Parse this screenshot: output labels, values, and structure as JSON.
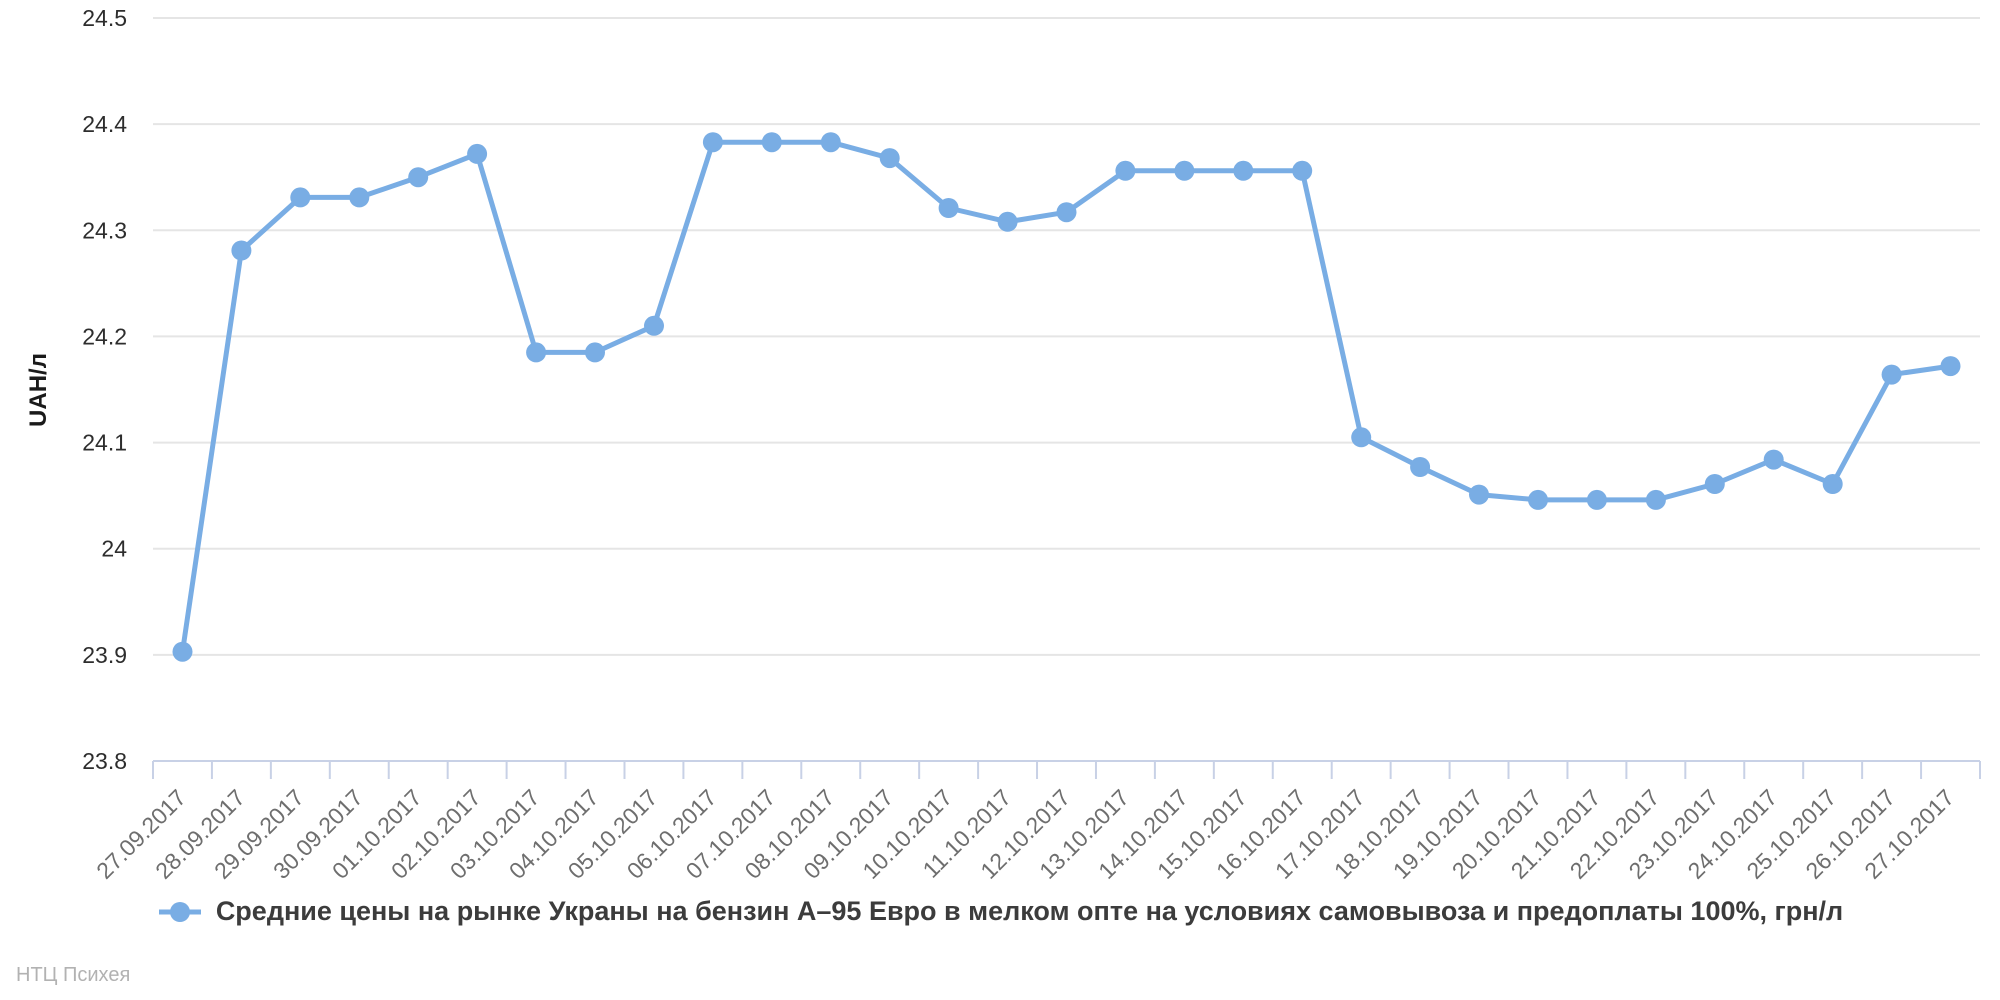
{
  "chart_data": {
    "type": "line",
    "title": "",
    "ylabel": "UAH/л",
    "xlabel": "",
    "ylim": [
      23.8,
      24.5
    ],
    "grid": "horizontal",
    "legend_position": "bottom",
    "x_tick_rotation": -45,
    "categories": [
      "27.09.2017",
      "28.09.2017",
      "29.09.2017",
      "30.09.2017",
      "01.10.2017",
      "02.10.2017",
      "03.10.2017",
      "04.10.2017",
      "05.10.2017",
      "06.10.2017",
      "07.10.2017",
      "08.10.2017",
      "09.10.2017",
      "10.10.2017",
      "11.10.2017",
      "12.10.2017",
      "13.10.2017",
      "14.10.2017",
      "15.10.2017",
      "16.10.2017",
      "17.10.2017",
      "18.10.2017",
      "19.10.2017",
      "20.10.2017",
      "21.10.2017",
      "22.10.2017",
      "23.10.2017",
      "24.10.2017",
      "25.10.2017",
      "26.10.2017",
      "27.10.2017"
    ],
    "series": [
      {
        "name": "Средние цены на рынке Украны на бензин А–95 Евро в мелком опте на условиях самовывоза и предоплаты 100%, грн/л",
        "values": [
          23.903,
          24.281,
          24.331,
          24.331,
          24.35,
          24.372,
          24.185,
          24.185,
          24.21,
          24.383,
          24.383,
          24.383,
          24.368,
          24.321,
          24.308,
          24.317,
          24.356,
          24.356,
          24.356,
          24.356,
          24.105,
          24.077,
          24.051,
          24.046,
          24.046,
          24.046,
          24.061,
          24.084,
          24.061,
          24.164,
          24.172
        ],
        "color": "#79ade4"
      }
    ],
    "y_ticks": [
      {
        "label": "24.5",
        "value": 24.5
      },
      {
        "label": "24.4",
        "value": 24.4
      },
      {
        "label": "24.3",
        "value": 24.3
      },
      {
        "label": "24.2",
        "value": 24.2
      },
      {
        "label": "24.1",
        "value": 24.1
      },
      {
        "label": "24",
        "value": 24.0
      },
      {
        "label": "23.9",
        "value": 23.9
      },
      {
        "label": "23.8",
        "value": 23.8
      }
    ]
  },
  "legend": {
    "label": "Средние цены на рынке Украны на бензин А–95 Евро в мелком опте на условиях самовывоза и предоплаты 100%, грн/л"
  },
  "footer": {
    "text": "НТЦ Психея"
  },
  "colors": {
    "series": "#79ade4",
    "grid": "#e5e5e5",
    "axis": "#c8d1e6",
    "y_tick_label": "#2d2d2d",
    "x_tick_label": "#6e6e6e",
    "legend_text": "#3c3c3c",
    "footer_text": "#b2b2b2",
    "background": "#ffffff"
  }
}
